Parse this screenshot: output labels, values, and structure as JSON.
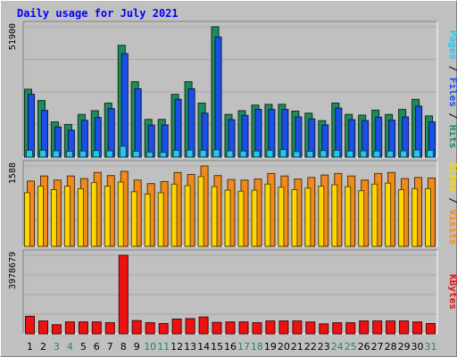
{
  "chart_data": {
    "type": "bar",
    "title": "Daily usage for July 2021",
    "categories": [
      "1",
      "2",
      "3",
      "4",
      "5",
      "6",
      "7",
      "8",
      "9",
      "10",
      "11",
      "12",
      "13",
      "14",
      "15",
      "16",
      "17",
      "18",
      "19",
      "20",
      "21",
      "22",
      "23",
      "24",
      "25",
      "26",
      "27",
      "28",
      "29",
      "30",
      "31"
    ],
    "weekend_days": [
      "3",
      "4",
      "10",
      "11",
      "17",
      "18",
      "24",
      "25",
      "31"
    ],
    "panels": [
      {
        "name": "hits-files-pages",
        "ymax_label": "51900",
        "ymax": 51900,
        "right_labels": [
          "Pages",
          "Files",
          "Hits"
        ],
        "series": [
          {
            "name": "Hits",
            "color": "#1e8c5a",
            "values": [
              27000,
              22500,
              14000,
              13000,
              17000,
              18500,
              21500,
              44500,
              30000,
              15000,
              15000,
              25000,
              30000,
              21500,
              51900,
              17000,
              18500,
              20700,
              21000,
              21000,
              18300,
              17500,
              14500,
              21500,
              17000,
              16700,
              18700,
              17000,
              19000,
              23000,
              16400
            ]
          },
          {
            "name": "Files",
            "color": "#1a50e8",
            "values": [
              25000,
              18600,
              12000,
              10700,
              14600,
              15800,
              19300,
              41200,
              27200,
              12700,
              12800,
              23000,
              27200,
              17500,
              47800,
              14900,
              16600,
              19000,
              19000,
              19000,
              16000,
              15200,
              12800,
              19500,
              14900,
              14500,
              15900,
              14700,
              16000,
              20300,
              14000
            ]
          },
          {
            "name": "Pages",
            "color": "#29c4f0",
            "values": [
              2700,
              2700,
              2500,
              2300,
              2400,
              2600,
              2500,
              4300,
              2300,
              2000,
              1900,
              2700,
              2800,
              2700,
              2900,
              2500,
              2400,
              2400,
              2700,
              3000,
              2200,
              2300,
              2600,
              2700,
              2400,
              2500,
              2400,
              2400,
              2500,
              2800,
              2700
            ]
          }
        ]
      },
      {
        "name": "visits-sites",
        "ymax_label": "1588",
        "ymax": 1588,
        "right_labels": [
          "Sites",
          "Visits"
        ],
        "series": [
          {
            "name": "Visits",
            "color": "#f08a1c",
            "values": [
              1290,
              1390,
              1310,
              1390,
              1340,
              1460,
              1400,
              1480,
              1310,
              1240,
              1280,
              1460,
              1420,
              1588,
              1400,
              1320,
              1310,
              1330,
              1440,
              1390,
              1330,
              1360,
              1410,
              1440,
              1390,
              1310,
              1440,
              1460,
              1340,
              1360,
              1350
            ]
          },
          {
            "name": "Sites",
            "color": "#ffd700",
            "values": [
              1060,
              1190,
              1120,
              1190,
              1140,
              1260,
              1190,
              1270,
              1080,
              1030,
              1060,
              1230,
              1200,
              1380,
              1180,
              1110,
              1090,
              1110,
              1230,
              1170,
              1120,
              1150,
              1190,
              1220,
              1180,
              1100,
              1230,
              1250,
              1120,
              1140,
              1140
            ]
          }
        ]
      },
      {
        "name": "kbytes",
        "ymax_label": "3978679",
        "ymax": 3978679,
        "right_labels": [
          "KBytes"
        ],
        "series": [
          {
            "name": "KBytes",
            "color": "#ee1111",
            "values": [
              885000,
              650000,
              460000,
              600000,
              600000,
              600000,
              560000,
              3978679,
              670000,
              560000,
              520000,
              745000,
              770000,
              850000,
              580000,
              600000,
              600000,
              560000,
              650000,
              650000,
              650000,
              600000,
              500000,
              560000,
              560000,
              650000,
              650000,
              650000,
              650000,
              600000,
              520000
            ]
          }
        ]
      }
    ]
  }
}
